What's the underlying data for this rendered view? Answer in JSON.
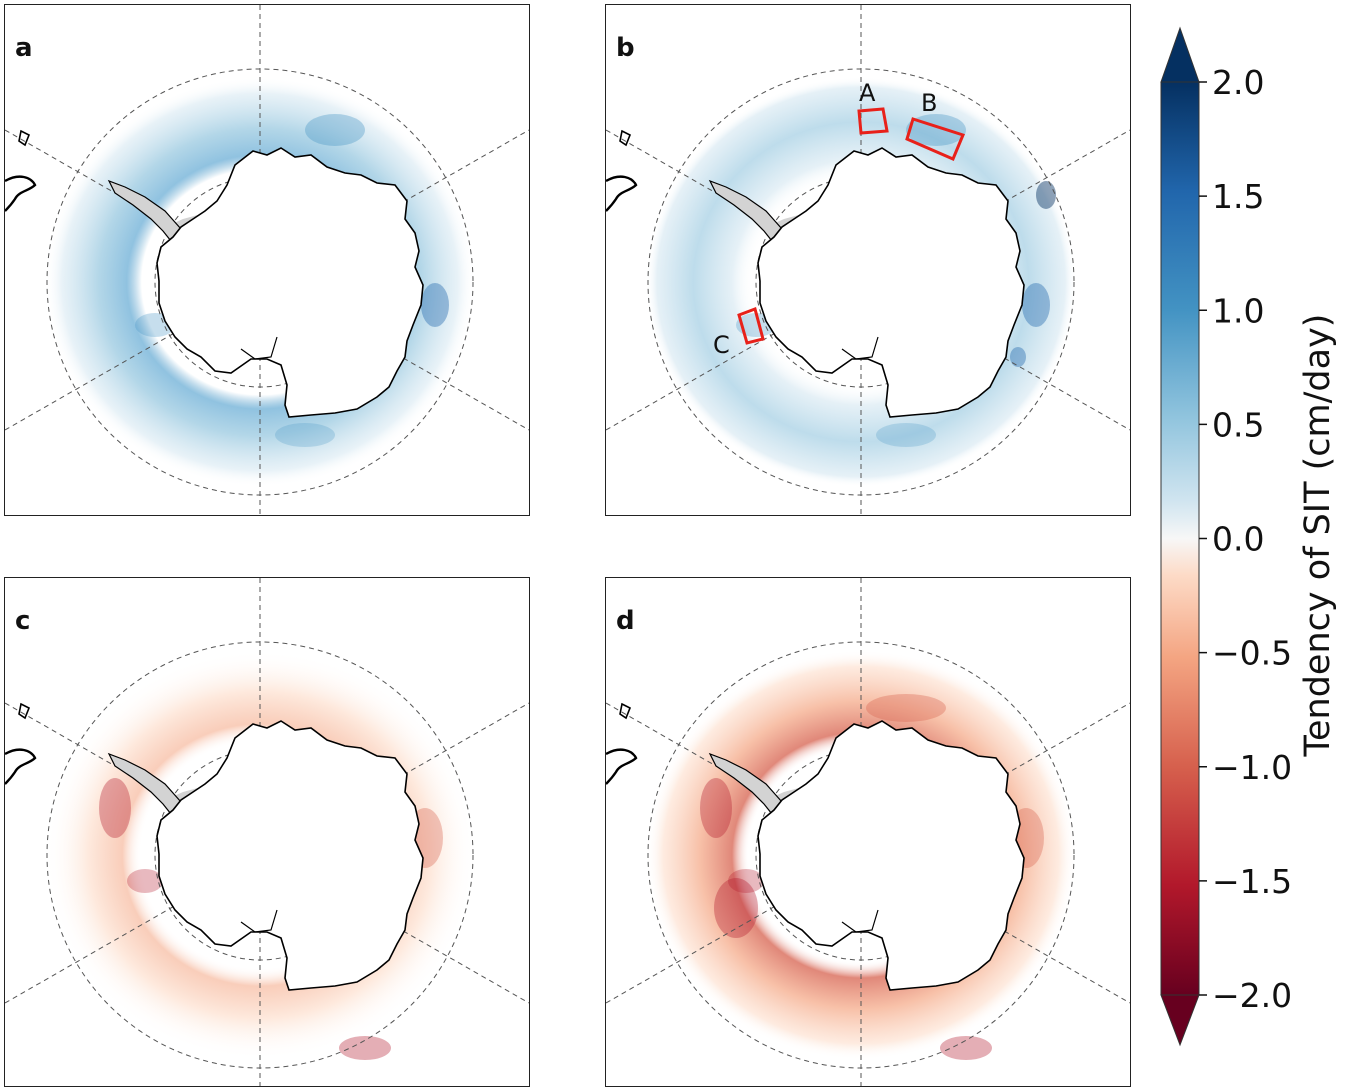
{
  "panels": [
    {
      "letter": "a",
      "sign": "positive",
      "regions": []
    },
    {
      "letter": "b",
      "sign": "positive",
      "regions": [
        {
          "label": "A"
        },
        {
          "label": "B"
        },
        {
          "label": "C"
        }
      ]
    },
    {
      "letter": "c",
      "sign": "negative",
      "regions": []
    },
    {
      "letter": "d",
      "sign": "negative",
      "regions": []
    }
  ],
  "colorbar": {
    "title": "Tendency of SIT (cm/day)",
    "min": -2.0,
    "max": 2.0,
    "extend": "both",
    "colormap": "RdBu",
    "ticks": [
      "2.0",
      "1.5",
      "1.0",
      "0.5",
      "0.0",
      "−0.5",
      "−1.0",
      "−1.5",
      "−2.0"
    ],
    "tick_values": [
      2.0,
      1.5,
      1.0,
      0.5,
      0.0,
      -0.5,
      -1.0,
      -1.5,
      -2.0
    ]
  },
  "colors": {
    "positive_light": "#d1e5f0",
    "positive_mid": "#92c5de",
    "positive_dark": "#4393c3",
    "negative_light": "#fddbc7",
    "negative_mid": "#f4a582",
    "negative_dark": "#d6604d",
    "land": "#d3d3d3",
    "region_box": "#e8211a"
  }
}
